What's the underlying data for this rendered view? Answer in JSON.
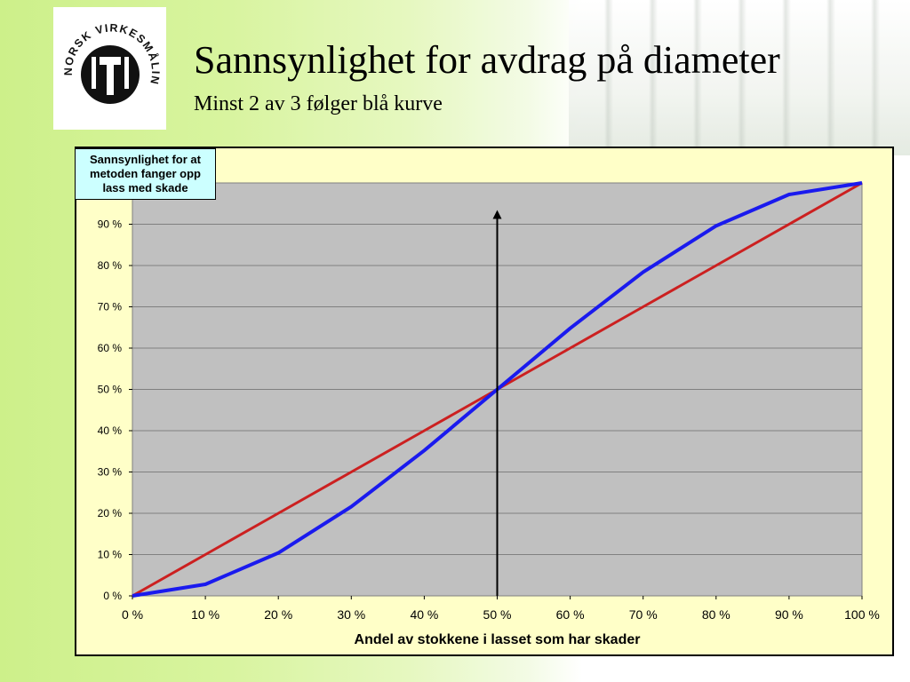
{
  "slide": {
    "title": "Sannsynlighet for avdrag på diameter",
    "subtitle": "Minst 2 av 3 følger blå kurve",
    "logo_text": "NORSK VIRKESMÅLING"
  },
  "chart_data": {
    "type": "line",
    "xlabel": "Andel av stokkene i lasset som har skader",
    "ylabel": "Sannsynlighet for at metoden fanger opp lass med skade",
    "x": [
      0,
      10,
      20,
      30,
      40,
      50,
      60,
      70,
      80,
      90,
      100
    ],
    "x_tick_labels": [
      "0 %",
      "10 %",
      "20 %",
      "30 %",
      "40 %",
      "50 %",
      "60 %",
      "70 %",
      "80 %",
      "90 %",
      "100 %"
    ],
    "y_tick_labels": [
      "0 %",
      "10 %",
      "20 %",
      "30 %",
      "40 %",
      "50 %",
      "60 %",
      "70 %",
      "80 %",
      "90 %"
    ],
    "xlim": [
      0,
      100
    ],
    "ylim": [
      0,
      100
    ],
    "grid": true,
    "series": [
      {
        "values": [
          0,
          2.8,
          10.4,
          21.6,
          35.2,
          50,
          64.8,
          78.4,
          89.6,
          97.2,
          100
        ],
        "color": "#1a1aee"
      },
      {
        "values": [
          0,
          10,
          20,
          30,
          40,
          50,
          60,
          70,
          80,
          90,
          100
        ],
        "color": "#cc2020"
      }
    ],
    "annotation_arrow": {
      "x": 50,
      "y_from": 0,
      "y_to": 93
    },
    "colors": {
      "plot_background": "#c0c0c0",
      "chart_background": "#ffffc8",
      "ylabel_box": "#ccffff",
      "gridline": "#808080"
    }
  }
}
